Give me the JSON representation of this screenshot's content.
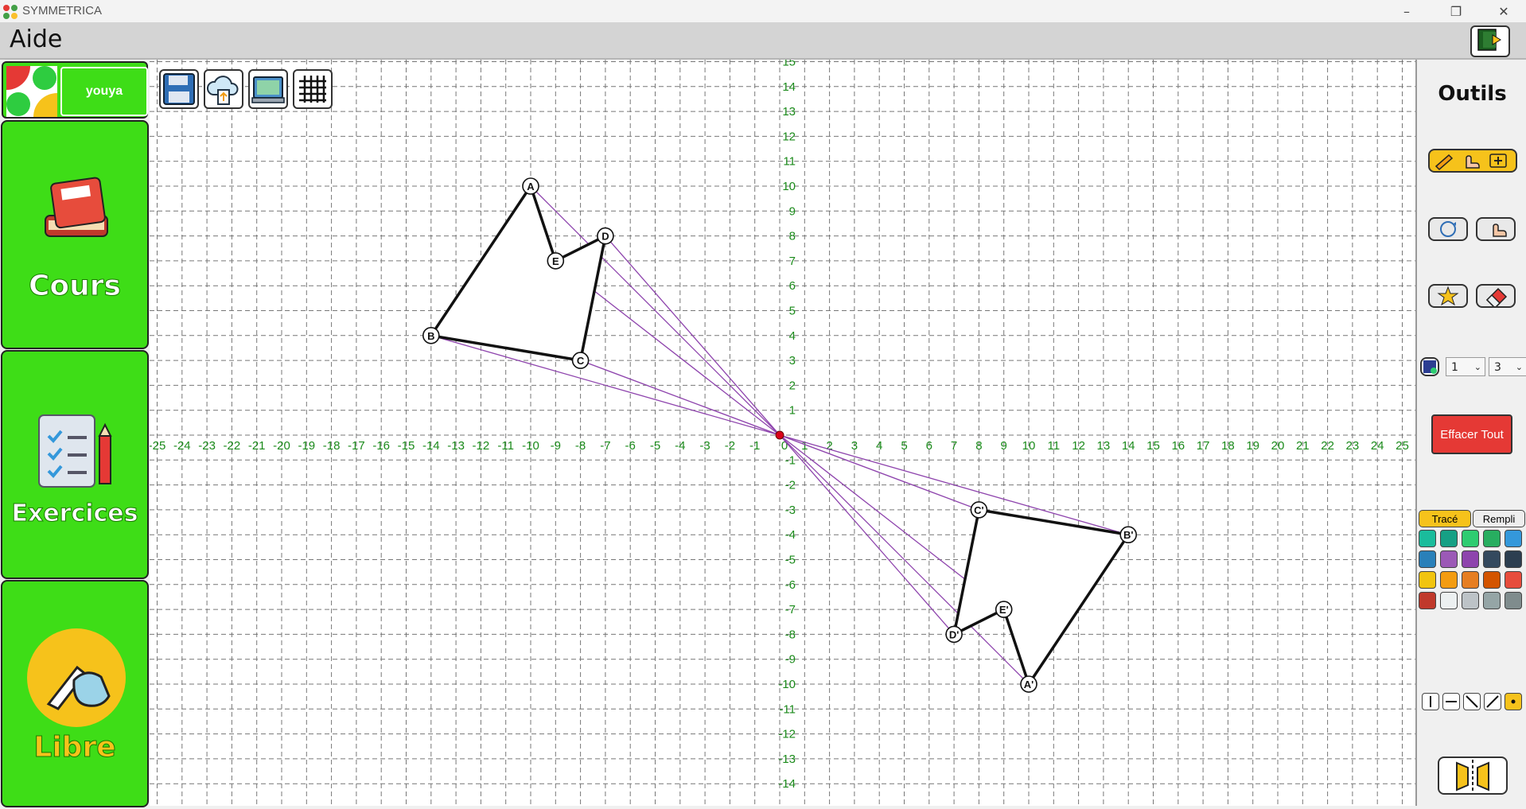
{
  "window": {
    "title": "SYMMETRICA",
    "minimize": "–",
    "maximize": "❐",
    "close": "✕"
  },
  "menu": {
    "aide": "Aide"
  },
  "user": {
    "name": "youya"
  },
  "nav": {
    "cours": "Cours",
    "exercices": "Exercices",
    "libre": "Libre"
  },
  "toolbar": {
    "icons": [
      "save-icon",
      "cloud-upload-icon",
      "image-export-icon",
      "grid-icon"
    ]
  },
  "right_panel": {
    "title": "Outils",
    "width_select": "1",
    "size_select": "3",
    "clear_all": "Effacer Tout",
    "tab_trace": "Tracé",
    "tab_fill": "Rempli",
    "palette": [
      "#1abc9c",
      "#16a085",
      "#2ecc71",
      "#27ae60",
      "#3498db",
      "#2980b9",
      "#9b59b6",
      "#8e44ad",
      "#34495e",
      "#2c3e50",
      "#f1c40f",
      "#f39c12",
      "#e67e22",
      "#d35400",
      "#e74c3c",
      "#c0392b",
      "#ecf0f1",
      "#bdc3c7",
      "#95a5a6",
      "#7f8c8d"
    ]
  },
  "chart_data": {
    "type": "scatter",
    "title": "",
    "xlim": [
      -25,
      25
    ],
    "ylim": [
      -14,
      15
    ],
    "grid": true,
    "x_ticks": [
      "-25",
      "-24",
      "-23",
      "-22",
      "-21",
      "-20",
      "-19",
      "-18",
      "-17",
      "-16",
      "-15",
      "-14",
      "-13",
      "-12",
      "-11",
      "-10",
      "-9",
      "-8",
      "-7",
      "-6",
      "-5",
      "-4",
      "-3",
      "-2",
      "-1",
      "0",
      "1",
      "2",
      "3",
      "4",
      "5",
      "6",
      "7",
      "8",
      "9",
      "10",
      "11",
      "12",
      "13",
      "14",
      "15",
      "16",
      "17",
      "18",
      "19",
      "20",
      "21",
      "22",
      "23",
      "24",
      "25"
    ],
    "y_ticks": [
      "15",
      "14",
      "13",
      "12",
      "11",
      "10",
      "9",
      "8",
      "7",
      "6",
      "5",
      "4",
      "3",
      "2",
      "1",
      "-1",
      "-2",
      "-3",
      "-4",
      "-5",
      "-6",
      "-7",
      "-8",
      "-9",
      "-10",
      "-11",
      "-12",
      "-13",
      "-14"
    ],
    "center": {
      "label": "",
      "x": 0,
      "y": 0
    },
    "points": [
      {
        "label": "A",
        "x": -10,
        "y": 10
      },
      {
        "label": "B",
        "x": -14,
        "y": 4
      },
      {
        "label": "C",
        "x": -8,
        "y": 3
      },
      {
        "label": "D",
        "x": -7,
        "y": 8
      },
      {
        "label": "E",
        "x": -9,
        "y": 7
      },
      {
        "label": "A'",
        "x": 10,
        "y": -10
      },
      {
        "label": "B'",
        "x": 14,
        "y": -4
      },
      {
        "label": "C'",
        "x": 8,
        "y": -3
      },
      {
        "label": "D'",
        "x": 7,
        "y": -8
      },
      {
        "label": "E'",
        "x": 9,
        "y": -7
      }
    ],
    "polygons": [
      [
        "A",
        "E",
        "D",
        "C",
        "B"
      ],
      [
        "A'",
        "E'",
        "D'",
        "C'",
        "B'"
      ]
    ],
    "construction_lines": [
      [
        "A",
        "A'"
      ],
      [
        "B",
        "B'"
      ],
      [
        "C",
        "C'"
      ],
      [
        "D",
        "D'"
      ],
      [
        "E",
        "E'"
      ]
    ]
  }
}
